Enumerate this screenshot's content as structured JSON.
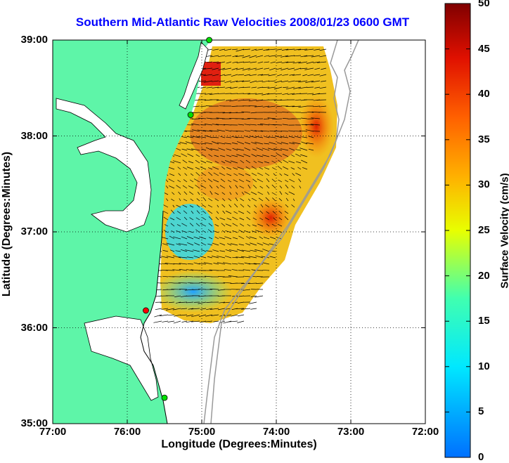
{
  "title": "Southern Mid-Atlantic Raw Velocities 2008/01/23 0600 GMT",
  "chart_data": {
    "type": "map",
    "xlabel": "Longitude (Degrees:Minutes)",
    "ylabel": "Latitude (Degrees:Minutes)",
    "xlim": [
      -77,
      -72
    ],
    "ylim": [
      35,
      39
    ],
    "x_ticks": [
      "77:00",
      "76:00",
      "75:00",
      "74:00",
      "73:00",
      "72:00"
    ],
    "y_ticks": [
      "39:00",
      "38:00",
      "37:00",
      "36:00",
      "35:00"
    ],
    "grid": "dotted",
    "colorbar": {
      "label": "Surface Velocity (cm/s)",
      "min": 0,
      "max": 50,
      "ticks": [
        "50",
        "45",
        "40",
        "35",
        "30",
        "25",
        "20",
        "15",
        "10",
        "5",
        "0"
      ],
      "colormap": "jet"
    },
    "land_color": "#5ef5a8",
    "max_velocity_region_lon_lat": [
      -73.5,
      38.1
    ],
    "station_markers": [
      {
        "lon": -74.9,
        "lat": 39.0,
        "color": "#00e000"
      },
      {
        "lon": -75.15,
        "lat": 38.22,
        "color": "#00e000"
      },
      {
        "lon": -75.75,
        "lat": 36.18,
        "color": "#ff0000"
      },
      {
        "lon": -75.5,
        "lat": 35.27,
        "color": "#00e000"
      }
    ]
  }
}
